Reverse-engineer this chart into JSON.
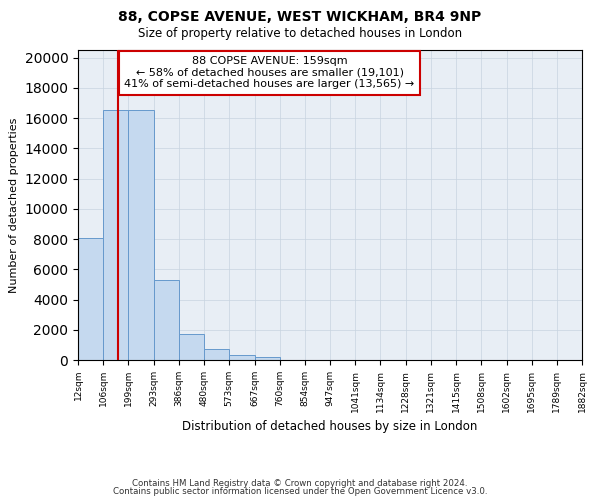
{
  "title1": "88, COPSE AVENUE, WEST WICKHAM, BR4 9NP",
  "title2": "Size of property relative to detached houses in London",
  "xlabel": "Distribution of detached houses by size in London",
  "ylabel": "Number of detached properties",
  "bar_heights": [
    8100,
    16500,
    16500,
    5300,
    1750,
    700,
    300,
    200,
    0,
    0,
    0,
    0,
    0,
    0,
    0,
    0,
    0,
    0,
    0,
    0
  ],
  "bin_edges": [
    12,
    106,
    199,
    293,
    386,
    480,
    573,
    667,
    760,
    854,
    947,
    1041,
    1134,
    1228,
    1321,
    1415,
    1508,
    1602,
    1695,
    1789,
    1882
  ],
  "tick_labels": [
    "12sqm",
    "106sqm",
    "199sqm",
    "293sqm",
    "386sqm",
    "480sqm",
    "573sqm",
    "667sqm",
    "760sqm",
    "854sqm",
    "947sqm",
    "1041sqm",
    "1134sqm",
    "1228sqm",
    "1321sqm",
    "1415sqm",
    "1508sqm",
    "1602sqm",
    "1695sqm",
    "1789sqm",
    "1882sqm"
  ],
  "bar_color": "#c5d9ef",
  "bar_edge_color": "#6699cc",
  "property_line_x": 159,
  "annotation_line1": "88 COPSE AVENUE: 159sqm",
  "annotation_line2": "← 58% of detached houses are smaller (19,101)",
  "annotation_line3": "41% of semi-detached houses are larger (13,565) →",
  "annotation_box_color": "#ffffff",
  "annotation_box_edge_color": "#cc0000",
  "vline_color": "#cc0000",
  "ylim": [
    0,
    20500
  ],
  "yticks": [
    0,
    2000,
    4000,
    6000,
    8000,
    10000,
    12000,
    14000,
    16000,
    18000,
    20000
  ],
  "footer1": "Contains HM Land Registry data © Crown copyright and database right 2024.",
  "footer2": "Contains public sector information licensed under the Open Government Licence v3.0.",
  "bg_color": "#ffffff",
  "plot_bg_color": "#e8eef5",
  "grid_color": "#c8d4e0"
}
